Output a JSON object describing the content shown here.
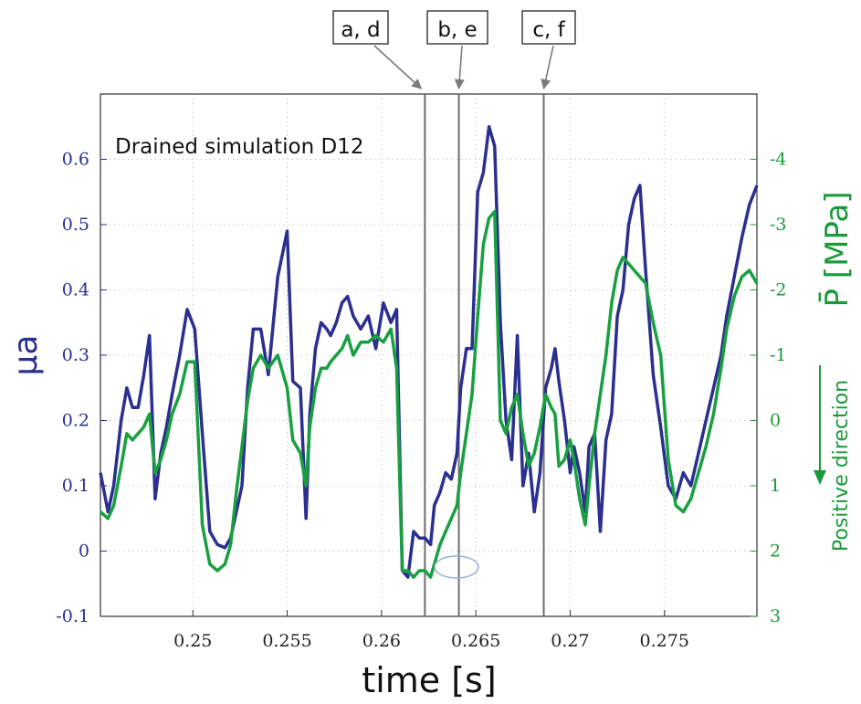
{
  "chart_data": {
    "type": "line",
    "title": "Drained simulation D12",
    "xlabel": "time [s]",
    "ylabel_left": "μa",
    "ylabel_right": "P̄ [MPa]",
    "ylabel_right_note": "Positive direction",
    "xlim": [
      0.2451,
      0.2799
    ],
    "ylim_left": [
      -0.1,
      0.7
    ],
    "ylim_right_inverted": [
      3,
      -5
    ],
    "grid": true,
    "x_ticks": [
      {
        "v": 0.25,
        "label": "0.25"
      },
      {
        "v": 0.255,
        "label": "0.255"
      },
      {
        "v": 0.26,
        "label": "0.26"
      },
      {
        "v": 0.265,
        "label": "0.265"
      },
      {
        "v": 0.27,
        "label": "0.27"
      },
      {
        "v": 0.275,
        "label": "0.275"
      }
    ],
    "y_ticks_left": [
      {
        "v": -0.1,
        "label": "-0.1"
      },
      {
        "v": 0,
        "label": "0"
      },
      {
        "v": 0.1,
        "label": "0.1"
      },
      {
        "v": 0.2,
        "label": "0.2"
      },
      {
        "v": 0.3,
        "label": "0.3"
      },
      {
        "v": 0.4,
        "label": "0.4"
      },
      {
        "v": 0.5,
        "label": "0.5"
      },
      {
        "v": 0.6,
        "label": "0.6"
      }
    ],
    "y_ticks_right": [
      {
        "v": 3,
        "label": "3"
      },
      {
        "v": 2,
        "label": "2"
      },
      {
        "v": 1,
        "label": "1"
      },
      {
        "v": 0,
        "label": "0"
      },
      {
        "v": -1,
        "label": "-1"
      },
      {
        "v": -2,
        "label": "-2"
      },
      {
        "v": -3,
        "label": "-3"
      },
      {
        "v": -4,
        "label": "-4"
      }
    ],
    "markers": [
      {
        "label": "a, d",
        "x": 0.2623
      },
      {
        "label": "b, e",
        "x": 0.2641
      },
      {
        "label": "c, f",
        "x": 0.2686
      }
    ],
    "series": [
      {
        "color": "#2b2f8f",
        "axis": "left",
        "x": [
          0.2451,
          0.2455,
          0.2458,
          0.2462,
          0.2465,
          0.2468,
          0.2471,
          0.2474,
          0.2477,
          0.248,
          0.2483,
          0.2486,
          0.2489,
          0.2493,
          0.2497,
          0.2501,
          0.2505,
          0.2509,
          0.2513,
          0.2517,
          0.252,
          0.2523,
          0.2526,
          0.2529,
          0.2532,
          0.2536,
          0.254,
          0.2545,
          0.255,
          0.2553,
          0.2557,
          0.256,
          0.2562,
          0.2565,
          0.2568,
          0.2571,
          0.2573,
          0.2576,
          0.2579,
          0.2582,
          0.2585,
          0.2589,
          0.2593,
          0.2597,
          0.2601,
          0.2605,
          0.2608,
          0.2611,
          0.2614,
          0.2617,
          0.262,
          0.2623,
          0.2626,
          0.2628,
          0.2631,
          0.2634,
          0.2637,
          0.264,
          0.2642,
          0.2645,
          0.2648,
          0.2651,
          0.2654,
          0.2657,
          0.266,
          0.2663,
          0.2666,
          0.2669,
          0.2672,
          0.2675,
          0.2678,
          0.2681,
          0.2684,
          0.2687,
          0.269,
          0.2692,
          0.2694,
          0.2697,
          0.27,
          0.2702,
          0.2705,
          0.2708,
          0.271,
          0.2713,
          0.2716,
          0.2719,
          0.2722,
          0.2725,
          0.2728,
          0.2731,
          0.2734,
          0.2737,
          0.274,
          0.2744,
          0.2748,
          0.2752,
          0.2756,
          0.276,
          0.2764,
          0.2768,
          0.2772,
          0.2776,
          0.278,
          0.2783,
          0.2787,
          0.2791,
          0.2795,
          0.2799
        ],
        "y": [
          0.12,
          0.06,
          0.1,
          0.2,
          0.25,
          0.22,
          0.22,
          0.27,
          0.33,
          0.08,
          0.15,
          0.19,
          0.24,
          0.3,
          0.37,
          0.34,
          0.18,
          0.03,
          0.01,
          0.005,
          0.02,
          0.06,
          0.1,
          0.25,
          0.34,
          0.34,
          0.27,
          0.42,
          0.49,
          0.26,
          0.25,
          0.05,
          0.21,
          0.31,
          0.35,
          0.34,
          0.33,
          0.35,
          0.38,
          0.39,
          0.36,
          0.34,
          0.36,
          0.31,
          0.38,
          0.35,
          0.37,
          -0.03,
          -0.04,
          0.03,
          0.02,
          0.02,
          0.01,
          0.07,
          0.09,
          0.12,
          0.11,
          0.15,
          0.25,
          0.31,
          0.31,
          0.55,
          0.58,
          0.65,
          0.62,
          0.35,
          0.2,
          0.14,
          0.33,
          0.1,
          0.15,
          0.06,
          0.12,
          0.25,
          0.28,
          0.31,
          0.26,
          0.2,
          0.12,
          0.16,
          0.12,
          0.06,
          0.16,
          0.18,
          0.03,
          0.17,
          0.21,
          0.36,
          0.4,
          0.5,
          0.54,
          0.56,
          0.43,
          0.27,
          0.19,
          0.1,
          0.08,
          0.12,
          0.1,
          0.15,
          0.2,
          0.25,
          0.3,
          0.36,
          0.42,
          0.48,
          0.53,
          0.56
        ]
      },
      {
        "color": "#18a040",
        "axis": "right",
        "x": [
          0.2451,
          0.2455,
          0.2458,
          0.2462,
          0.2465,
          0.2468,
          0.2471,
          0.2474,
          0.2477,
          0.248,
          0.2483,
          0.2486,
          0.2489,
          0.2493,
          0.2497,
          0.2501,
          0.2505,
          0.2509,
          0.2513,
          0.2517,
          0.252,
          0.2523,
          0.2526,
          0.2529,
          0.2532,
          0.2536,
          0.254,
          0.2545,
          0.255,
          0.2553,
          0.2557,
          0.256,
          0.2562,
          0.2565,
          0.2568,
          0.2571,
          0.2573,
          0.2576,
          0.2579,
          0.2582,
          0.2585,
          0.2589,
          0.2593,
          0.2597,
          0.2601,
          0.2605,
          0.2608,
          0.2611,
          0.2614,
          0.2617,
          0.262,
          0.2623,
          0.2626,
          0.2628,
          0.2631,
          0.2634,
          0.2637,
          0.264,
          0.2642,
          0.2645,
          0.2648,
          0.2651,
          0.2654,
          0.2657,
          0.266,
          0.2663,
          0.2666,
          0.2669,
          0.2672,
          0.2675,
          0.2678,
          0.2681,
          0.2684,
          0.2687,
          0.269,
          0.2692,
          0.2694,
          0.2697,
          0.27,
          0.2702,
          0.2705,
          0.2708,
          0.271,
          0.2713,
          0.2716,
          0.2719,
          0.2722,
          0.2725,
          0.2728,
          0.2731,
          0.2734,
          0.2737,
          0.274,
          0.2744,
          0.2748,
          0.2752,
          0.2756,
          0.276,
          0.2764,
          0.2768,
          0.2772,
          0.2776,
          0.278,
          0.2783,
          0.2787,
          0.2791,
          0.2795,
          0.2799
        ],
        "y": [
          1.4,
          1.5,
          1.3,
          0.7,
          0.2,
          0.3,
          0.2,
          0.1,
          -0.1,
          0.8,
          0.6,
          0.3,
          -0.1,
          -0.4,
          -0.9,
          -0.9,
          1.6,
          2.2,
          2.3,
          2.2,
          1.9,
          1.1,
          0.4,
          -0.3,
          -0.8,
          -1.0,
          -0.8,
          -1.0,
          -0.5,
          0.3,
          0.5,
          1.0,
          0.1,
          -0.5,
          -0.8,
          -0.8,
          -0.9,
          -1.0,
          -1.1,
          -1.3,
          -1.0,
          -1.2,
          -1.2,
          -1.3,
          -1.2,
          -1.4,
          -0.8,
          2.3,
          2.3,
          2.4,
          2.3,
          2.3,
          2.4,
          2.2,
          1.9,
          1.7,
          1.5,
          1.3,
          0.8,
          0.2,
          -0.4,
          -1.6,
          -2.7,
          -3.1,
          -3.2,
          0.0,
          0.2,
          -0.2,
          -0.4,
          0.2,
          0.7,
          0.5,
          0.1,
          -0.4,
          -0.2,
          -0.1,
          0.7,
          0.6,
          0.3,
          0.6,
          1.2,
          1.6,
          1.0,
          0.2,
          -0.4,
          -1.0,
          -1.8,
          -2.3,
          -2.5,
          -2.4,
          -2.3,
          -2.2,
          -2.1,
          -1.5,
          -1.0,
          0.6,
          1.3,
          1.4,
          1.2,
          0.8,
          0.4,
          -0.1,
          -0.8,
          -1.4,
          -1.9,
          -2.2,
          -2.3,
          -2.1
        ]
      }
    ]
  }
}
